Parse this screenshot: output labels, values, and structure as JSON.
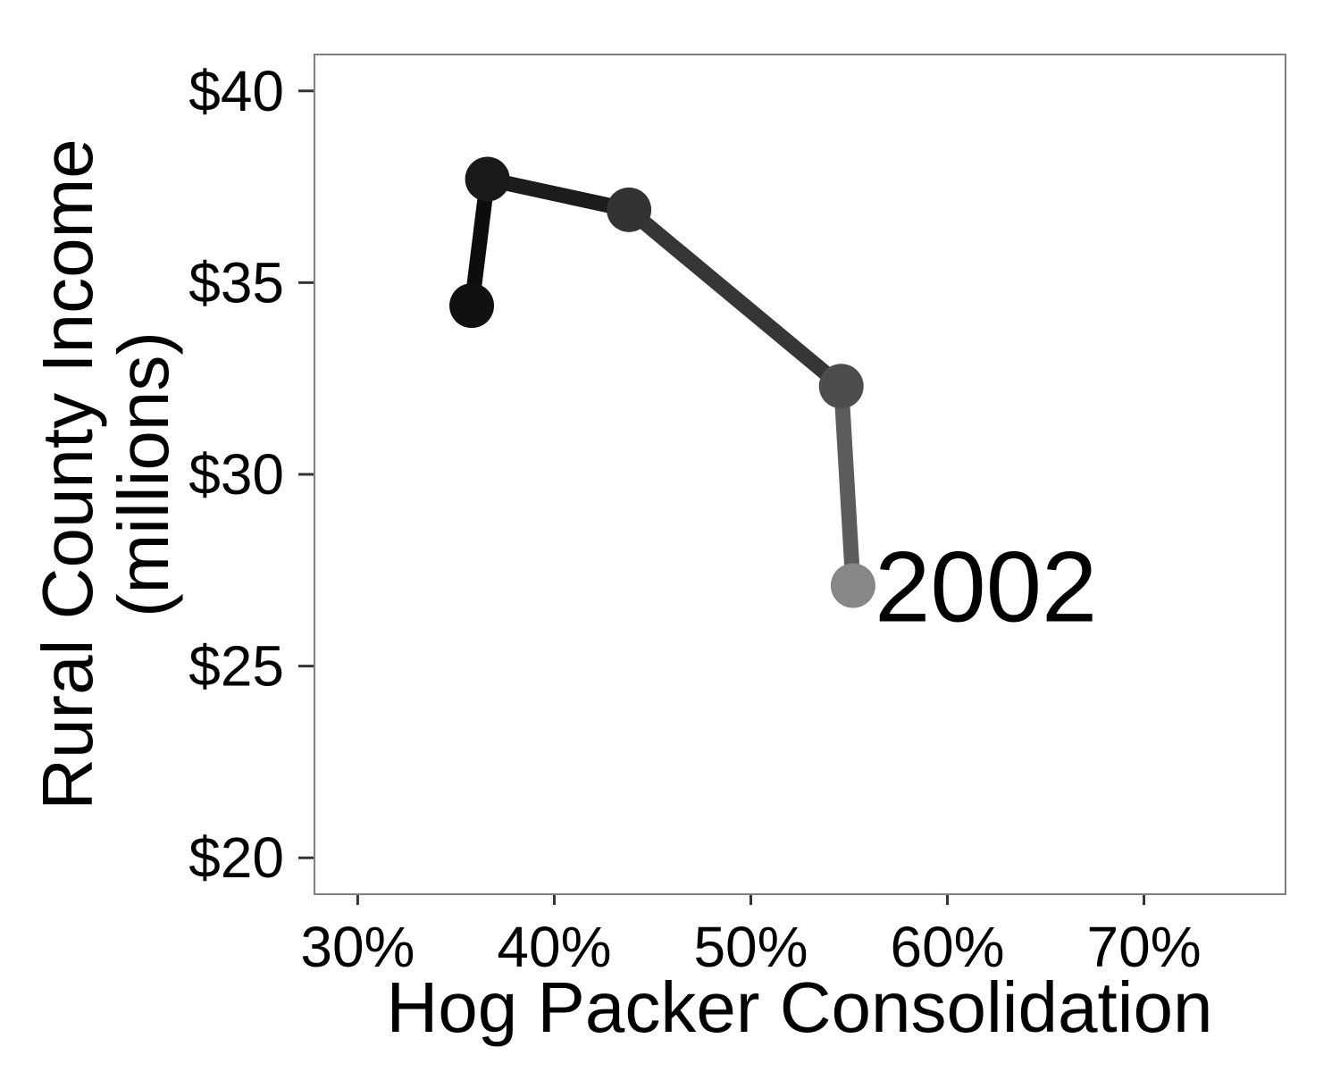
{
  "chart_data": {
    "type": "line",
    "xlabel": "Hog Packer Consolidation",
    "ylabel_lines": [
      "Rural County Income",
      "(millions)"
    ],
    "xlim": [
      27.8,
      77.2
    ],
    "ylim": [
      19.05,
      40.95
    ],
    "x_ticks": [
      {
        "value": 30,
        "label": "30%"
      },
      {
        "value": 40,
        "label": "40%"
      },
      {
        "value": 50,
        "label": "50%"
      },
      {
        "value": 60,
        "label": "60%"
      },
      {
        "value": 70,
        "label": "70%"
      }
    ],
    "y_ticks": [
      {
        "value": 20,
        "label": "$20"
      },
      {
        "value": 25,
        "label": "$25"
      },
      {
        "value": 30,
        "label": "$30"
      },
      {
        "value": 35,
        "label": "$35"
      },
      {
        "value": 40,
        "label": "$40"
      }
    ],
    "grid": false,
    "series": [
      {
        "points": [
          {
            "x": 35.8,
            "y": 34.4,
            "color": "#111111"
          },
          {
            "x": 36.6,
            "y": 37.7,
            "color": "#1a1a1a"
          },
          {
            "x": 43.8,
            "y": 36.9,
            "color": "#333333"
          },
          {
            "x": 54.6,
            "y": 32.3,
            "color": "#4d4d4d"
          },
          {
            "x": 55.2,
            "y": 27.1,
            "color": "#878787"
          }
        ],
        "segment_colors": [
          "#0d0d0d",
          "#1c1c1c",
          "#363636",
          "#5c5c5c"
        ]
      }
    ],
    "annotations": [
      {
        "text": "2002",
        "x": 56.3,
        "y": 27.1
      }
    ]
  }
}
